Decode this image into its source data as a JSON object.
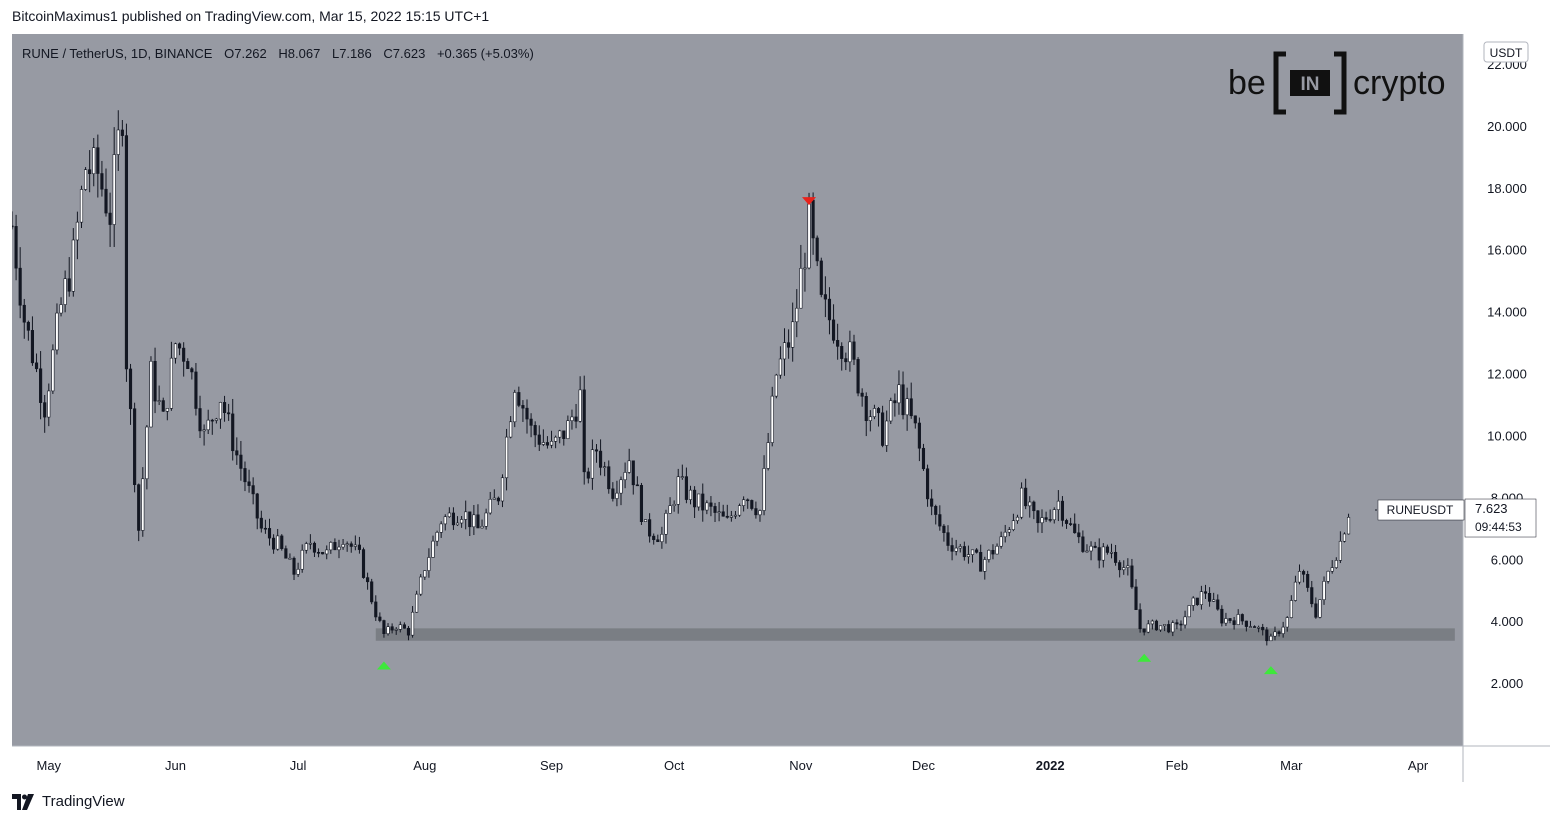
{
  "header": {
    "caption": "BitcoinMaximus1 published on TradingView.com, Mar 15, 2022 15:15 UTC+1"
  },
  "legend": {
    "symbol": "RUNE / TetherUS, 1D, BINANCE",
    "o_label": "O",
    "o_value": "7.262",
    "h_label": "H",
    "h_value": "8.067",
    "l_label": "L",
    "l_value": "7.186",
    "c_label": "C",
    "c_value": "7.623",
    "change": "+0.365 (+5.03%)"
  },
  "watermark": {
    "left": "be",
    "middle": "IN",
    "right": "crypto"
  },
  "price_tag": {
    "symbol_label": "RUNEUSDT",
    "price": "7.623",
    "countdown": "09:44:53"
  },
  "currency_badge": "USDT",
  "footer": {
    "brand": "TradingView"
  },
  "colors": {
    "plot_bg": "#979aa3",
    "candle": "#131722",
    "candle_up_fill": "#ffffff",
    "support_zone": "#707479",
    "marker_top": "#e8231c",
    "marker_bottom": "#3ee83b"
  },
  "chart_data": {
    "type": "candlestick",
    "title": "RUNE / TetherUS, 1D, BINANCE",
    "ylim": [
      0,
      23
    ],
    "y_ticks": [
      "2.000",
      "4.000",
      "6.000",
      "8.000",
      "10.000",
      "12.000",
      "14.000",
      "16.000",
      "18.000",
      "20.000",
      "22.000"
    ],
    "x_labels": [
      {
        "label": "May",
        "date": "2021-05-01"
      },
      {
        "label": "Jun",
        "date": "2021-06-01"
      },
      {
        "label": "Jul",
        "date": "2021-07-01"
      },
      {
        "label": "Aug",
        "date": "2021-08-01"
      },
      {
        "label": "Sep",
        "date": "2021-09-01"
      },
      {
        "label": "Oct",
        "date": "2021-10-01"
      },
      {
        "label": "Nov",
        "date": "2021-11-01"
      },
      {
        "label": "Dec",
        "date": "2021-12-01"
      },
      {
        "label": "2022",
        "date": "2022-01-01",
        "bold": true
      },
      {
        "label": "Feb",
        "date": "2022-02-01"
      },
      {
        "label": "Mar",
        "date": "2022-03-01"
      },
      {
        "label": "Apr",
        "date": "2022-04-01"
      }
    ],
    "x_range": [
      "2021-04-22",
      "2022-04-12"
    ],
    "path_start": "2021-04-22",
    "path_end": "2022-03-15",
    "price_path": [
      [
        "2021-04-22",
        16.8
      ],
      [
        "2021-04-25",
        13.8
      ],
      [
        "2021-04-30",
        11.0
      ],
      [
        "2021-05-04",
        14.2
      ],
      [
        "2021-05-07",
        15.8
      ],
      [
        "2021-05-10",
        18.7
      ],
      [
        "2021-05-13",
        18.5
      ],
      [
        "2021-05-16",
        17.2
      ],
      [
        "2021-05-19",
        20.6
      ],
      [
        "2021-05-20",
        12.5
      ],
      [
        "2021-05-23",
        7.0
      ],
      [
        "2021-05-26",
        12.0
      ],
      [
        "2021-05-29",
        10.5
      ],
      [
        "2021-06-01",
        13.0
      ],
      [
        "2021-06-04",
        12.6
      ],
      [
        "2021-06-08",
        10.0
      ],
      [
        "2021-06-12",
        11.3
      ],
      [
        "2021-06-16",
        9.4
      ],
      [
        "2021-06-22",
        7.0
      ],
      [
        "2021-06-26",
        6.5
      ],
      [
        "2021-06-30",
        5.6
      ],
      [
        "2021-07-04",
        6.6
      ],
      [
        "2021-07-08",
        6.2
      ],
      [
        "2021-07-12",
        6.8
      ],
      [
        "2021-07-16",
        6.1
      ],
      [
        "2021-07-20",
        4.3
      ],
      [
        "2021-07-22",
        3.6
      ],
      [
        "2021-07-25",
        3.9
      ],
      [
        "2021-07-28",
        3.7
      ],
      [
        "2021-08-01",
        5.8
      ],
      [
        "2021-08-05",
        7.3
      ],
      [
        "2021-08-10",
        7.6
      ],
      [
        "2021-08-14",
        7.0
      ],
      [
        "2021-08-19",
        8.1
      ],
      [
        "2021-08-23",
        11.8
      ],
      [
        "2021-08-27",
        10.2
      ],
      [
        "2021-09-01",
        9.6
      ],
      [
        "2021-09-05",
        10.3
      ],
      [
        "2021-09-08",
        11.3
      ],
      [
        "2021-09-09",
        8.5
      ],
      [
        "2021-09-12",
        9.6
      ],
      [
        "2021-09-16",
        8.3
      ],
      [
        "2021-09-20",
        9.3
      ],
      [
        "2021-09-24",
        7.0
      ],
      [
        "2021-09-28",
        6.8
      ],
      [
        "2021-10-02",
        8.5
      ],
      [
        "2021-10-06",
        7.9
      ],
      [
        "2021-10-10",
        7.6
      ],
      [
        "2021-10-14",
        7.2
      ],
      [
        "2021-10-18",
        8.2
      ],
      [
        "2021-10-22",
        7.6
      ],
      [
        "2021-10-26",
        12.0
      ],
      [
        "2021-10-30",
        13.4
      ],
      [
        "2021-11-03",
        16.9
      ],
      [
        "2021-11-06",
        14.2
      ],
      [
        "2021-11-09",
        13.6
      ],
      [
        "2021-11-13",
        12.6
      ],
      [
        "2021-11-17",
        11.0
      ],
      [
        "2021-11-21",
        10.1
      ],
      [
        "2021-11-25",
        11.4
      ],
      [
        "2021-11-29",
        10.2
      ],
      [
        "2021-12-03",
        7.6
      ],
      [
        "2021-12-07",
        6.6
      ],
      [
        "2021-12-11",
        6.3
      ],
      [
        "2021-12-15",
        5.9
      ],
      [
        "2021-12-20",
        6.6
      ],
      [
        "2021-12-25",
        8.0
      ],
      [
        "2021-12-29",
        7.1
      ],
      [
        "2022-01-03",
        7.9
      ],
      [
        "2022-01-07",
        6.8
      ],
      [
        "2022-01-12",
        6.2
      ],
      [
        "2022-01-16",
        6.3
      ],
      [
        "2022-01-20",
        5.6
      ],
      [
        "2022-01-23",
        3.8
      ],
      [
        "2022-01-27",
        3.9
      ],
      [
        "2022-02-01",
        3.8
      ],
      [
        "2022-02-05",
        4.6
      ],
      [
        "2022-02-08",
        5.0
      ],
      [
        "2022-02-12",
        4.1
      ],
      [
        "2022-02-16",
        4.1
      ],
      [
        "2022-02-20",
        3.9
      ],
      [
        "2022-02-24",
        3.4
      ],
      [
        "2022-02-28",
        4.1
      ],
      [
        "2022-03-03",
        5.7
      ],
      [
        "2022-03-07",
        4.3
      ],
      [
        "2022-03-10",
        5.6
      ],
      [
        "2022-03-13",
        6.6
      ],
      [
        "2022-03-15",
        7.6
      ]
    ],
    "support_zone": {
      "from": "2021-07-20",
      "to": "2022-04-10",
      "low": 3.4,
      "high": 3.8
    },
    "markers": [
      {
        "type": "high",
        "date": "2021-11-03",
        "price": 17.6
      },
      {
        "type": "low",
        "date": "2021-07-22",
        "price": 2.6
      },
      {
        "type": "low",
        "date": "2022-01-24",
        "price": 2.85
      },
      {
        "type": "low",
        "date": "2022-02-24",
        "price": 2.45
      }
    ],
    "last_price": 7.623
  }
}
